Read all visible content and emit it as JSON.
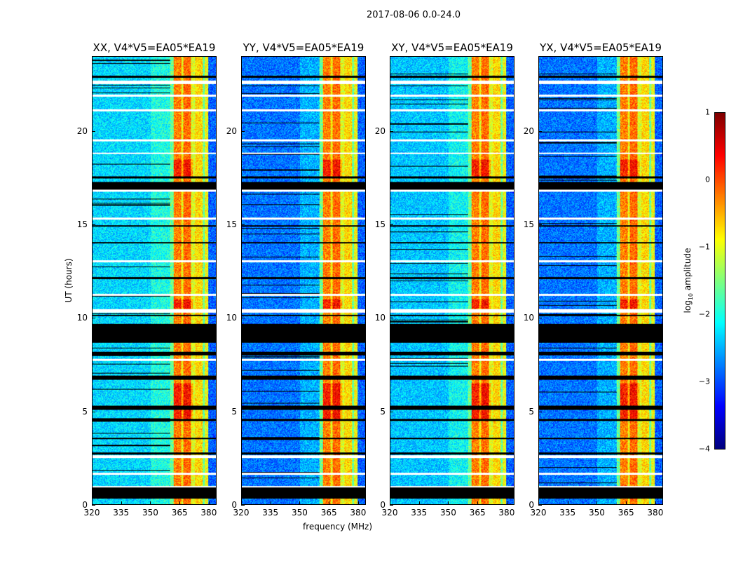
{
  "chart_data": {
    "type": "heatmap",
    "title": "2017-08-06 0.0-24.0",
    "xlabel": "frequency (MHz)",
    "ylabel": "UT (hours)",
    "xlim": [
      320,
      384
    ],
    "ylim": [
      0,
      24
    ],
    "xticks": [
      "320",
      "335",
      "350",
      "365",
      "380"
    ],
    "yticks": [
      "0",
      "5",
      "10",
      "15",
      "20"
    ],
    "panels": [
      {
        "title": "XX, V4*V5=EA05*EA19",
        "edge_level": -2.3
      },
      {
        "title": "YY, V4*V5=EA05*EA19",
        "edge_level": -2.8
      },
      {
        "title": "XY, V4*V5=EA05*EA19",
        "edge_level": -2.4
      },
      {
        "title": "YX, V4*V5=EA05*EA19",
        "edge_level": -2.8
      }
    ],
    "frequency_profile_log10": [
      {
        "from": 320,
        "to": 360,
        "value": -2.6
      },
      {
        "from": 360,
        "to": 362,
        "value": -1.6
      },
      {
        "from": 362,
        "to": 366,
        "value": -0.25
      },
      {
        "from": 366,
        "to": 367,
        "value": -0.9
      },
      {
        "from": 367,
        "to": 371,
        "value": -0.15
      },
      {
        "from": 371,
        "to": 373,
        "value": -1.0
      },
      {
        "from": 373,
        "to": 377,
        "value": -0.7
      },
      {
        "from": 377,
        "to": 378,
        "value": -1.6
      },
      {
        "from": 378,
        "to": 380,
        "value": -0.9
      },
      {
        "from": 380,
        "to": 384,
        "value": -2.9
      }
    ],
    "flagged_white_hours": [
      [
        0.9,
        1.0
      ],
      [
        1.6,
        1.7
      ],
      [
        2.5,
        2.65
      ],
      [
        7.7,
        7.8
      ],
      [
        10.3,
        10.5
      ],
      [
        11.2,
        11.3
      ],
      [
        13.0,
        13.1
      ],
      [
        15.3,
        15.4
      ],
      [
        16.8,
        16.9
      ],
      [
        18.8,
        18.9
      ],
      [
        19.5,
        19.6
      ],
      [
        21.1,
        21.2
      ],
      [
        21.9,
        22.0
      ],
      [
        22.55,
        22.75
      ]
    ],
    "flagged_black_hours": [
      [
        0.3,
        0.9
      ],
      [
        2.7,
        2.8
      ],
      [
        3.5,
        3.6
      ],
      [
        4.5,
        4.6
      ],
      [
        5.1,
        5.3
      ],
      [
        6.7,
        6.9
      ],
      [
        8.0,
        8.2
      ],
      [
        8.7,
        9.7
      ],
      [
        10.1,
        10.2
      ],
      [
        12.1,
        12.2
      ],
      [
        14.0,
        14.1
      ],
      [
        14.9,
        15.0
      ],
      [
        16.9,
        17.3
      ],
      [
        17.5,
        17.6
      ],
      [
        22.9,
        23.0
      ]
    ],
    "colorbar": {
      "label": "log₁₀ amplitude",
      "range": [
        -4,
        1
      ],
      "ticks": [
        "−4",
        "−3",
        "−2",
        "−1",
        "0",
        "1"
      ],
      "colormap": "jet"
    }
  }
}
